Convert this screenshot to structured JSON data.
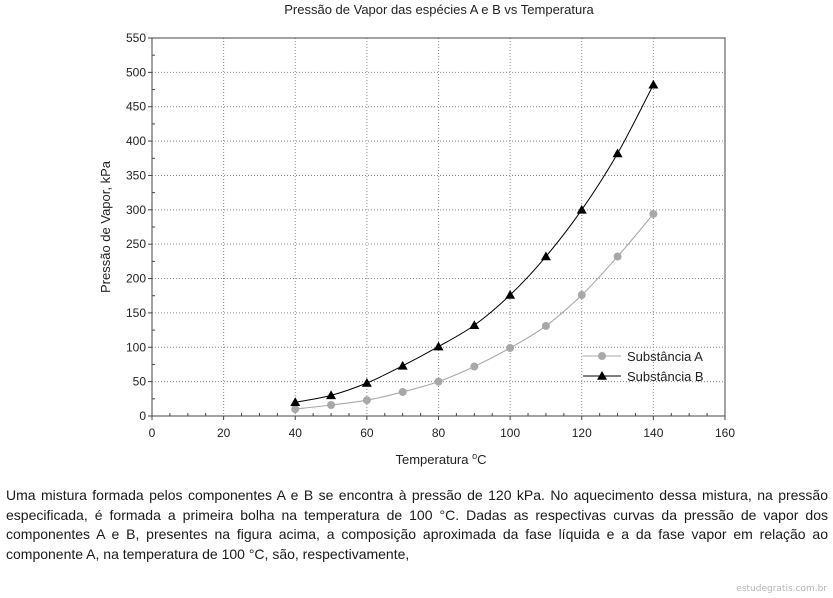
{
  "chart_data": {
    "type": "line",
    "title": "Pressão de Vapor das espécies A e B vs Temperatura",
    "xlabel_main": "Temperatura ",
    "xlabel_sup": "o",
    "xlabel_unit": "C",
    "ylabel": "Pressão de Vapor, kPa",
    "xlim": [
      0,
      160
    ],
    "ylim": [
      0,
      550
    ],
    "x_ticks": [
      0,
      20,
      40,
      60,
      80,
      100,
      120,
      140,
      160
    ],
    "y_ticks": [
      0,
      50,
      100,
      150,
      200,
      250,
      300,
      350,
      400,
      450,
      500,
      550
    ],
    "grid": true,
    "legend_position": "bottom-right",
    "x": [
      40,
      50,
      60,
      70,
      80,
      90,
      100,
      110,
      120,
      130,
      140
    ],
    "series": [
      {
        "name": "Substância A",
        "marker": "circle",
        "color": "#a8a8a8",
        "values": [
          10,
          16,
          23,
          35,
          50,
          72,
          99,
          131,
          176,
          232,
          294
        ]
      },
      {
        "name": "Substância B",
        "marker": "triangle",
        "color": "#000000",
        "values": [
          20,
          30,
          48,
          73,
          101,
          132,
          176,
          232,
          300,
          382,
          482
        ]
      }
    ]
  },
  "question": {
    "text": "Uma mistura formada pelos componentes A e B se encontra à pressão de 120 kPa. No aquecimento dessa mistura, na pressão especificada, é formada a primeira bolha na temperatura de 100 °C. Dadas as respectivas curvas da pressão de vapor dos componentes A e B, presentes na figura acima, a composição aproximada da fase líquida e a da fase vapor em relação ao componente A, na temperatura de 100 °C, são, respectivamente,"
  },
  "watermark": "estudegratis.com.br"
}
